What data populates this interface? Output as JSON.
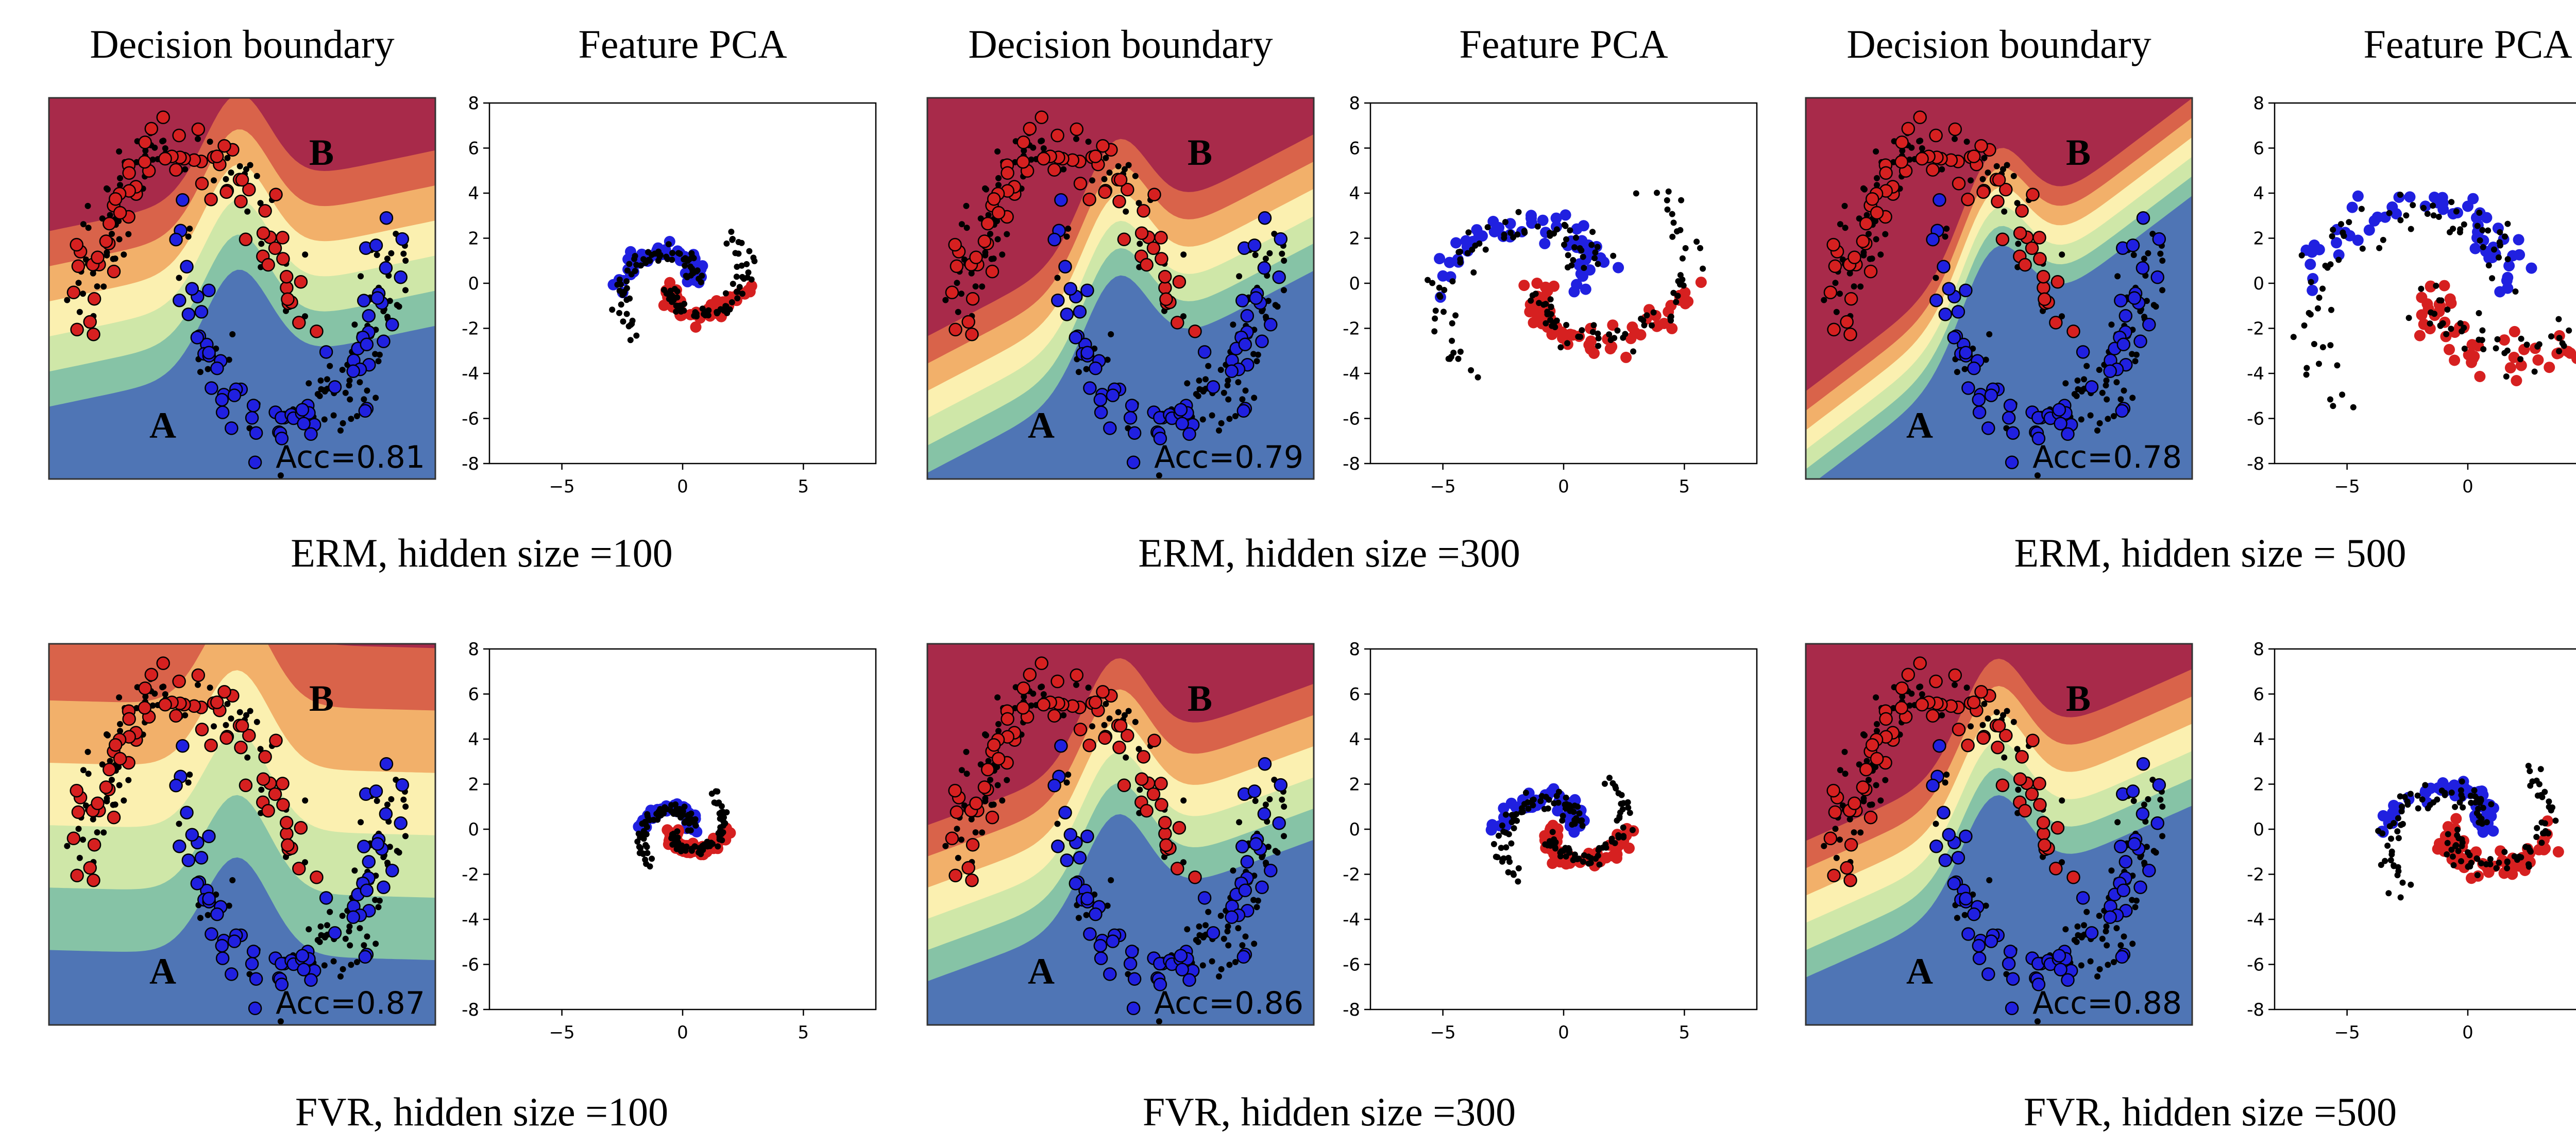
{
  "figure": {
    "rows": [
      {
        "panels": [
          {
            "caption": "ERM, hidden size =100",
            "boundary_title": "Decision boundary",
            "pca_title": "Feature PCA",
            "acc_text": "Acc=0.81",
            "acc": 0.81,
            "boundary_variant": "erm_100",
            "pca_scale": 0.75
          },
          {
            "caption": "ERM, hidden size =300",
            "boundary_title": "Decision boundary",
            "pca_title": "Feature PCA",
            "acc_text": "Acc=0.79",
            "acc": 0.79,
            "boundary_variant": "erm_300",
            "pca_scale": 1.45
          },
          {
            "caption": "ERM, hidden size = 500",
            "boundary_title": "Decision boundary",
            "pca_title": "Feature PCA",
            "acc_text": "Acc=0.78",
            "acc": 0.78,
            "boundary_variant": "erm_500",
            "pca_scale": 1.85
          }
        ]
      },
      {
        "panels": [
          {
            "caption": "FVR, hidden size =100",
            "boundary_title": "",
            "pca_title": "",
            "acc_text": "Acc=0.87",
            "acc": 0.87,
            "boundary_variant": "fvr_100",
            "pca_scale": 0.5
          },
          {
            "caption": "FVR, hidden size =300",
            "boundary_title": "",
            "pca_title": "",
            "acc_text": "Acc=0.86",
            "acc": 0.86,
            "boundary_variant": "fvr_300",
            "pca_scale": 0.75
          },
          {
            "caption": "FVR, hidden size =500",
            "boundary_title": "",
            "pca_title": "",
            "acc_text": "Acc=0.88",
            "acc": 0.88,
            "boundary_variant": "fvr_500",
            "pca_scale": 0.95
          }
        ]
      }
    ],
    "point_labels": [
      "A",
      "B"
    ]
  },
  "chart_data": {
    "type": "scatter",
    "pca_axes": {
      "xlim": [
        -8,
        8
      ],
      "ylim": [
        -8,
        8
      ],
      "xticks": [
        "-5",
        "0",
        "5"
      ],
      "yticks": [
        "8",
        "6",
        "4",
        "2",
        "0",
        "-2",
        "-4",
        "-6",
        "-8"
      ]
    },
    "colors": {
      "class_a": "#d62020",
      "class_b": "#2020e0",
      "unlabeled": "#000000",
      "boundary_bands": [
        "#a82a4a",
        "#d9634a",
        "#f2b06a",
        "#fbf0b0",
        "#cfe7a8",
        "#86c3a6",
        "#4f75b5"
      ]
    }
  }
}
